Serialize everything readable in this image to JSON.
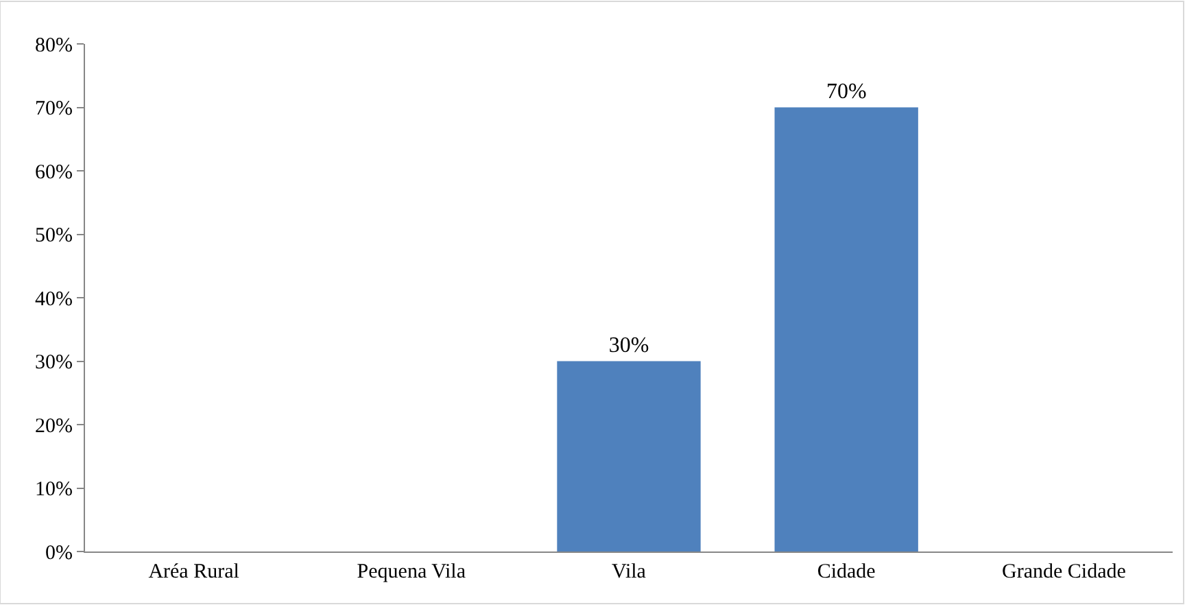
{
  "chart_data": {
    "type": "bar",
    "categories": [
      "Aréa Rural",
      "Pequena Vila",
      "Vila",
      "Cidade",
      "Grande Cidade"
    ],
    "values": [
      0,
      0,
      30,
      70,
      0
    ],
    "value_labels": [
      null,
      null,
      "30%",
      "70%",
      null
    ],
    "color": "#4f81bd",
    "ylim": [
      0,
      80
    ],
    "yticks": [
      {
        "value": 0,
        "label": "0%"
      },
      {
        "value": 10,
        "label": "10%"
      },
      {
        "value": 20,
        "label": "20%"
      },
      {
        "value": 30,
        "label": "30%"
      },
      {
        "value": 40,
        "label": "40%"
      },
      {
        "value": 50,
        "label": "50%"
      },
      {
        "value": 60,
        "label": "60%"
      },
      {
        "value": 70,
        "label": "70%"
      },
      {
        "value": 80,
        "label": "80%"
      }
    ],
    "grid": false,
    "legend": false
  }
}
